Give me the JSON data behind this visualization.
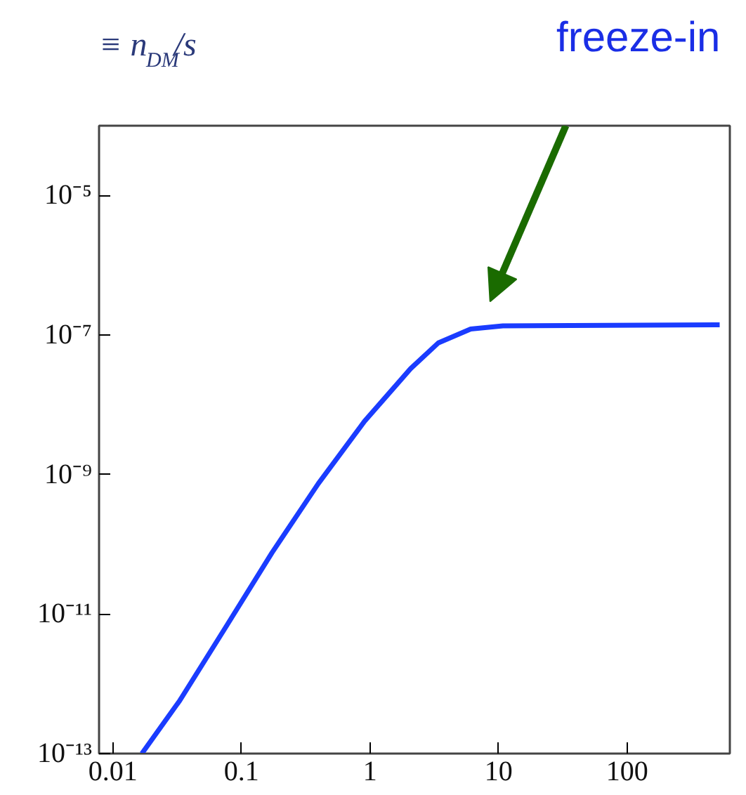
{
  "chart_data": {
    "type": "line",
    "ylabel": "≡ n$_{DM}$/s",
    "x": [
      0.0168,
      0.0332,
      0.0759,
      0.173,
      0.396,
      0.906,
      2.07,
      3.4,
      6.07,
      10.8,
      525
    ],
    "series": [
      {
        "color": "#1a3cff",
        "values": [
          1e-13,
          5.8e-13,
          6.6e-12,
          7.6e-11,
          7.4e-10,
          5.8e-09,
          3.3e-08,
          7.7e-08,
          1.22e-07,
          1.35e-07,
          1.4e-07
        ]
      }
    ],
    "log": "xy",
    "xlim": [
      0.0078,
      630
    ],
    "ylim": [
      1e-13,
      0.0001
    ],
    "xticks": [
      0.01,
      0.1,
      1,
      10,
      100
    ],
    "yticks": [
      {
        "value": 1e-13,
        "label": "10⁻¹³"
      },
      {
        "value": 1e-11,
        "label": "10⁻¹¹"
      },
      {
        "value": 1e-09,
        "label": "10⁻⁹"
      },
      {
        "value": 1e-07,
        "label": "10⁻⁷"
      },
      {
        "value": 1e-05,
        "label": "10⁻⁵"
      }
    ],
    "annotations": [
      "freeze-in"
    ],
    "grid": false,
    "marker": "none",
    "line_style": "solid"
  }
}
